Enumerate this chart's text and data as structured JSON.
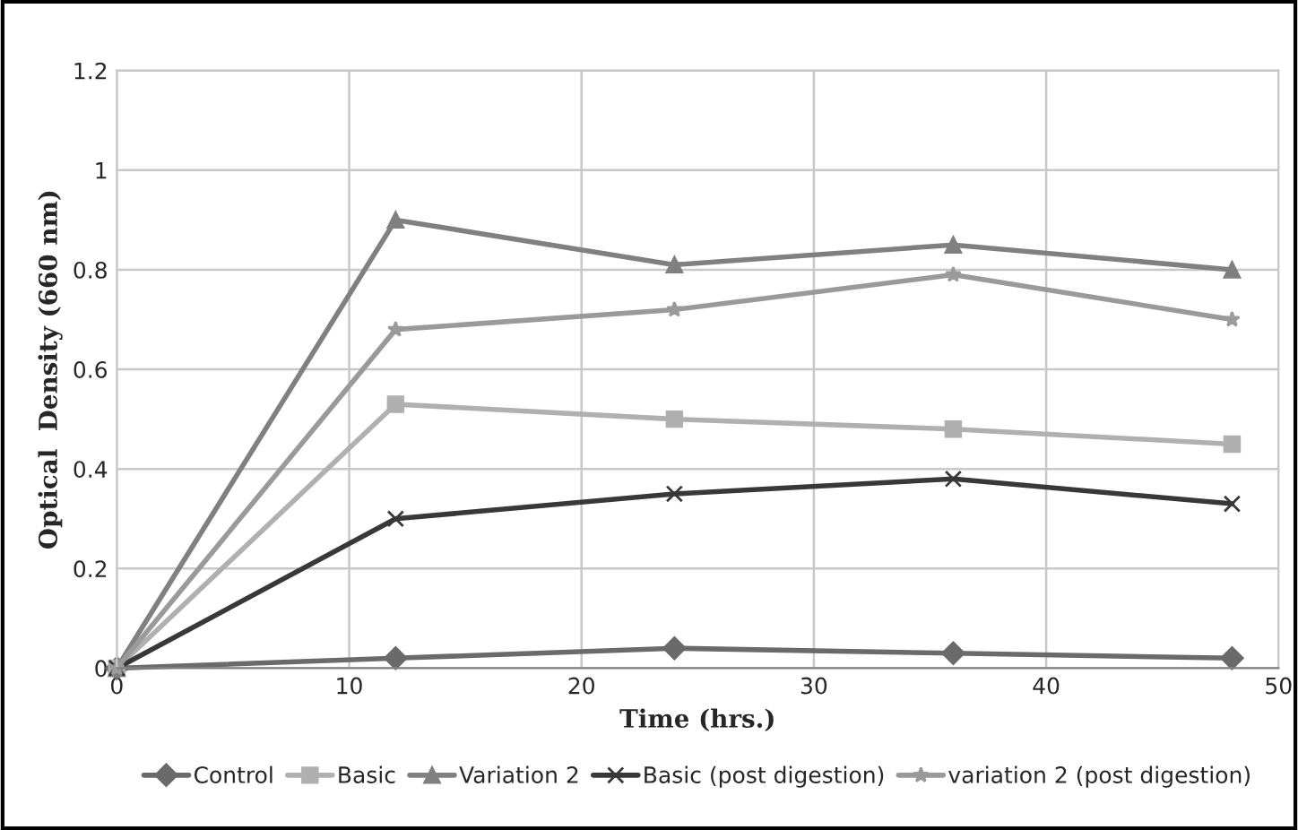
{
  "chart_data": {
    "type": "line",
    "xlabel": "Time (hrs.)",
    "ylabel": "Optical  Density (660 nm)",
    "x": [
      0,
      12,
      24,
      36,
      48
    ],
    "series": [
      {
        "name": "Control",
        "color": "#6a6a6a",
        "marker": "diamond",
        "values": [
          0,
          0.02,
          0.04,
          0.03,
          0.02
        ]
      },
      {
        "name": "Basic",
        "color": "#b0b0b0",
        "marker": "square",
        "values": [
          0,
          0.53,
          0.5,
          0.48,
          0.45
        ]
      },
      {
        "name": "Variation 2",
        "color": "#808080",
        "marker": "triangle",
        "values": [
          0,
          0.9,
          0.81,
          0.85,
          0.8
        ]
      },
      {
        "name": "Basic (post digestion)",
        "color": "#383838",
        "marker": "cross",
        "values": [
          0,
          0.3,
          0.35,
          0.38,
          0.33
        ]
      },
      {
        "name": "variation 2 (post digestion)",
        "color": "#9a9a9a",
        "marker": "star",
        "values": [
          0,
          0.68,
          0.72,
          0.79,
          0.7
        ]
      }
    ],
    "xlim": [
      0,
      50
    ],
    "xticks": [
      0,
      10,
      20,
      30,
      40,
      50
    ],
    "ylim": [
      0,
      1.2
    ],
    "yticks": [
      0,
      0.2,
      0.4,
      0.6,
      0.8,
      1,
      1.2
    ],
    "grid": true,
    "legend": "bottom"
  }
}
